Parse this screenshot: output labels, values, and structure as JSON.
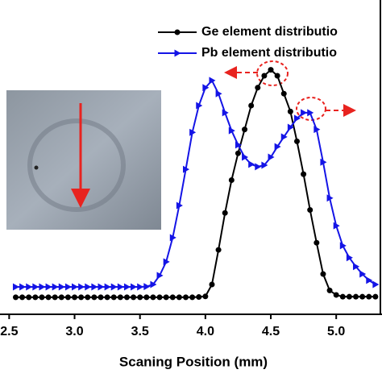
{
  "chart_data": {
    "type": "line",
    "xlabel": "Scaning Position (mm)",
    "x": [
      2.55,
      2.6,
      2.65,
      2.7,
      2.75,
      2.8,
      2.85,
      2.9,
      2.95,
      3.0,
      3.05,
      3.1,
      3.15,
      3.2,
      3.25,
      3.3,
      3.35,
      3.4,
      3.45,
      3.5,
      3.55,
      3.6,
      3.65,
      3.7,
      3.75,
      3.8,
      3.85,
      3.9,
      3.95,
      4.0,
      4.05,
      4.1,
      4.15,
      4.2,
      4.25,
      4.3,
      4.35,
      4.4,
      4.45,
      4.5,
      4.55,
      4.6,
      4.65,
      4.7,
      4.75,
      4.8,
      4.85,
      4.9,
      4.95,
      5.0,
      5.05,
      5.1,
      5.15,
      5.2,
      5.25,
      5.3
    ],
    "series": [
      {
        "name": "Ge element distributio",
        "color": "#000000",
        "marker": "circle",
        "values": [
          5.7,
          5.7,
          5.7,
          5.7,
          5.7,
          5.7,
          5.7,
          5.7,
          5.7,
          5.7,
          5.7,
          5.7,
          5.7,
          5.7,
          5.7,
          5.7,
          5.7,
          5.7,
          5.7,
          5.7,
          5.7,
          5.7,
          5.7,
          5.7,
          5.7,
          5.7,
          5.7,
          5.7,
          5.8,
          6,
          10,
          21.6,
          34,
          45,
          54,
          62,
          70,
          76,
          80,
          82,
          80,
          74,
          68,
          58,
          47,
          35,
          24,
          13.5,
          8,
          6.5,
          5.9,
          5.9,
          5.9,
          5.9,
          5.9,
          5.9
        ]
      },
      {
        "name": "Pb element distributio",
        "color": "#1414e6",
        "marker": "triangle-right",
        "values": [
          9.2,
          9.2,
          9.2,
          9.2,
          9.2,
          9.2,
          9.2,
          9.2,
          9.2,
          9.2,
          9.2,
          9.2,
          9.2,
          9.2,
          9.2,
          9.2,
          9.2,
          9.2,
          9.2,
          9.2,
          9.3,
          10,
          13,
          17.6,
          25.7,
          36.5,
          48.6,
          61,
          70,
          76,
          78.4,
          74,
          67.6,
          61.6,
          56.8,
          52.7,
          50.3,
          49.5,
          50,
          52.7,
          56.2,
          59.5,
          62.7,
          65.7,
          67.6,
          67.6,
          62,
          51,
          39,
          29.7,
          23,
          19,
          16,
          13.5,
          11.4,
          10
        ]
      }
    ],
    "xlim": [
      2.43,
      5.35
    ],
    "ylim": [
      0,
      100
    ],
    "xticks": [
      2.5,
      {
        "value": 3,
        "label": "3.0"
      },
      3.5,
      {
        "value": 4,
        "label": "4.0"
      },
      4.5,
      {
        "value": 5,
        "label": "5.0"
      }
    ]
  }
}
